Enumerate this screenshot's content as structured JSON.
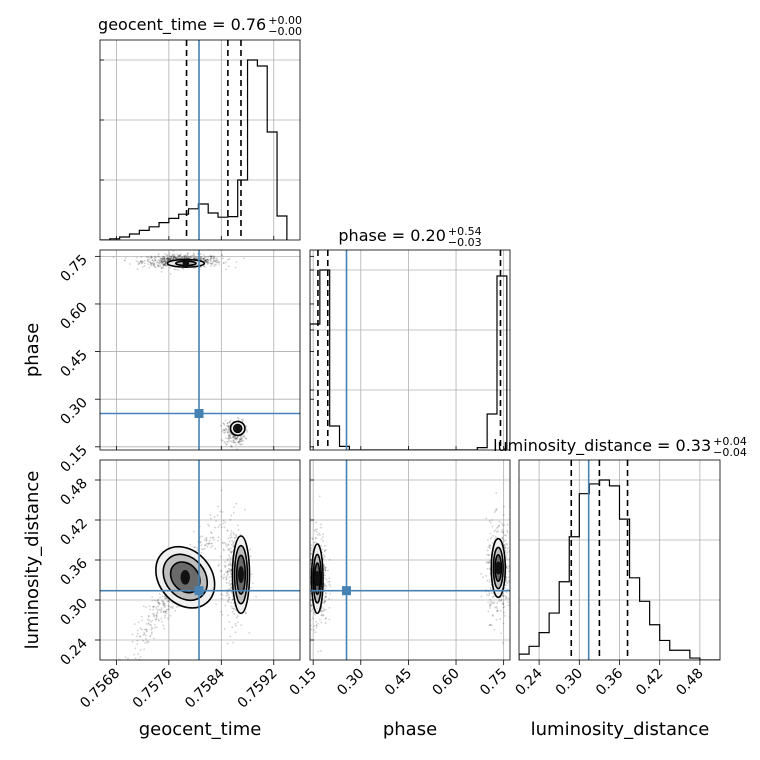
{
  "truth_color": "#4682b4",
  "chart_data": {
    "type": "corner",
    "parameters": [
      "geocent_time",
      "phase",
      "luminosity_distance"
    ],
    "truths": {
      "geocent_time": 0.75806,
      "phase": 0.255,
      "luminosity_distance": 0.314
    },
    "titles": [
      {
        "param": "geocent_time",
        "value": "0.76",
        "plus": "+0.00",
        "minus": "−0.00"
      },
      {
        "param": "phase",
        "value": "0.20",
        "plus": "+0.54",
        "minus": "−0.03"
      },
      {
        "param": "luminosity_distance",
        "value": "0.33",
        "plus": "+0.04",
        "minus": "−0.04"
      }
    ],
    "axes": {
      "geocent_time": {
        "range": [
          0.75655,
          0.7596
        ],
        "ticks": [
          "0.7568",
          "0.7576",
          "0.7584",
          "0.7592"
        ]
      },
      "phase": {
        "range": [
          0.14,
          0.77
        ],
        "ticks": [
          "0.15",
          "0.30",
          "0.45",
          "0.60",
          "0.75"
        ]
      },
      "luminosity_distance": {
        "range": [
          0.21,
          0.51
        ],
        "ticks": [
          "0.24",
          "0.30",
          "0.36",
          "0.42",
          "0.48"
        ]
      }
    },
    "histograms": {
      "geocent_time": {
        "edges": [
          0.75655,
          0.7567,
          0.75685,
          0.757,
          0.75715,
          0.7573,
          0.75745,
          0.7576,
          0.75775,
          0.7579,
          0.75805,
          0.7582,
          0.75835,
          0.7585,
          0.75865,
          0.7588,
          0.75895,
          0.7591,
          0.75925,
          0.7594
        ],
        "counts": [
          0,
          0.2,
          0.5,
          1.0,
          1.6,
          2.2,
          2.9,
          3.6,
          4.3,
          5.2,
          6.0,
          4.5,
          3.8,
          3.9,
          10.0,
          30.0,
          29.0,
          18.0,
          4.0
        ],
        "quantiles": [
          0.75787,
          0.7585,
          0.7587
        ]
      },
      "phase": {
        "edges": [
          0.14,
          0.171,
          0.202,
          0.233,
          0.264,
          0.295,
          0.326,
          0.357,
          0.388,
          0.419,
          0.45,
          0.481,
          0.512,
          0.543,
          0.574,
          0.605,
          0.636,
          0.667,
          0.698,
          0.729,
          0.76
        ],
        "counts": [
          10.5,
          15.0,
          2.0,
          0.3,
          0,
          0,
          0,
          0,
          0,
          0,
          0,
          0,
          0,
          0,
          0,
          0,
          0,
          0.2,
          3.0,
          14.5
        ],
        "quantiles": [
          0.165,
          0.196,
          0.74
        ]
      },
      "luminosity_distance": {
        "edges": [
          0.21,
          0.225,
          0.24,
          0.255,
          0.27,
          0.285,
          0.3,
          0.315,
          0.33,
          0.345,
          0.36,
          0.375,
          0.39,
          0.405,
          0.42,
          0.435,
          0.45,
          0.465,
          0.48,
          0.495,
          0.51
        ],
        "counts": [
          0.3,
          0.7,
          1.4,
          2.4,
          4.0,
          6.3,
          8.5,
          9.0,
          9.2,
          8.9,
          7.2,
          4.2,
          3.0,
          1.8,
          1.0,
          0.5,
          0.5,
          0.1,
          0,
          0
        ],
        "quantiles": [
          0.288,
          0.33,
          0.372
        ]
      }
    },
    "scatter_clusters": {
      "phase_vs_geocent_time": [
        {
          "x": 0.7578,
          "y": 0.735,
          "sx": 0.0003,
          "sy": 0.01,
          "n": 700
        },
        {
          "x": 0.7586,
          "y": 0.195,
          "sx": 8e-05,
          "sy": 0.02,
          "n": 260
        }
      ],
      "luminosity_distance_vs_geocent_time": [
        {
          "x": 0.7577,
          "y": 0.32,
          "sx": 0.00025,
          "sy": 0.035,
          "n": 450
        },
        {
          "x": 0.7586,
          "y": 0.34,
          "sx": 0.0001,
          "sy": 0.035,
          "n": 380
        }
      ],
      "luminosity_distance_vs_phase": [
        {
          "x": 0.165,
          "y": 0.33,
          "sx": 0.015,
          "sy": 0.035,
          "n": 420
        },
        {
          "x": 0.735,
          "y": 0.345,
          "sx": 0.02,
          "sy": 0.035,
          "n": 420
        }
      ]
    },
    "contours": {
      "phase_vs_geocent_time": [
        {
          "cx": 0.75786,
          "cy": 0.728,
          "rx": 0.00028,
          "ry": 0.012,
          "levels": [
            1,
            0.55
          ]
        },
        {
          "cx": 0.75865,
          "cy": 0.208,
          "rx": 0.00011,
          "ry": 0.022,
          "levels": [
            1,
            0.55
          ]
        }
      ],
      "luminosity_distance_vs_geocent_time": [
        {
          "cx": 0.75785,
          "cy": 0.334,
          "rx": 0.0004,
          "ry": 0.05,
          "rot": -40,
          "levels": [
            1,
            0.75,
            0.5
          ]
        },
        {
          "cx": 0.7587,
          "cy": 0.338,
          "rx": 0.00013,
          "ry": 0.058,
          "levels": [
            1,
            0.75,
            0.5
          ]
        }
      ],
      "luminosity_distance_vs_phase": [
        {
          "cx": 0.163,
          "cy": 0.332,
          "rx": 0.018,
          "ry": 0.052,
          "levels": [
            1,
            0.7,
            0.45
          ]
        },
        {
          "cx": 0.733,
          "cy": 0.348,
          "rx": 0.022,
          "ry": 0.044,
          "levels": [
            1,
            0.7,
            0.45
          ]
        }
      ]
    },
    "grid": true
  }
}
